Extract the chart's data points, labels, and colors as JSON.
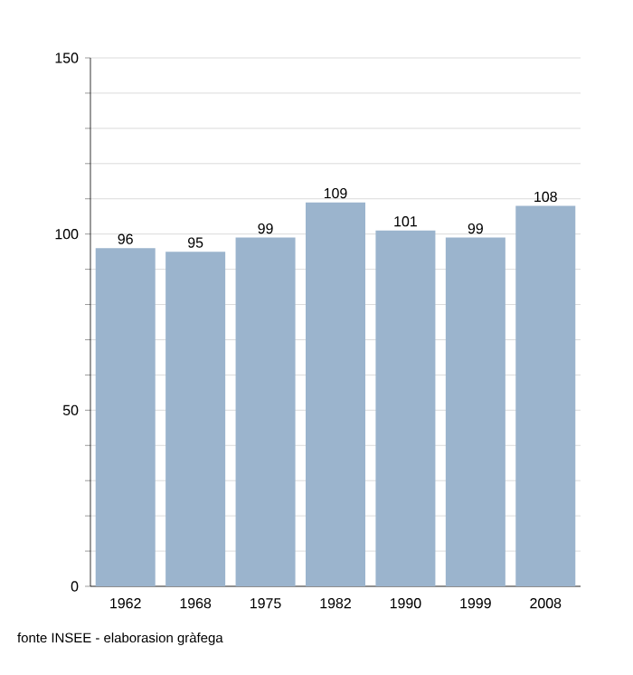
{
  "chart_data": {
    "type": "bar",
    "categories": [
      "1962",
      "1968",
      "1975",
      "1982",
      "1990",
      "1999",
      "2008"
    ],
    "values": [
      96,
      95,
      99,
      109,
      101,
      99,
      108
    ],
    "color": "#9bb4cd",
    "ylim": [
      0,
      150
    ],
    "yticks": [
      0,
      {
        "value": 10,
        "label": null
      },
      {
        "value": 20,
        "label": null
      },
      {
        "value": 30,
        "label": null
      },
      {
        "value": 40,
        "label": null
      },
      50,
      {
        "value": 60,
        "label": null
      },
      {
        "value": 70,
        "label": null
      },
      {
        "value": 80,
        "label": null
      },
      {
        "value": 90,
        "label": null
      },
      100,
      {
        "value": 110,
        "label": null
      },
      {
        "value": 120,
        "label": null
      },
      {
        "value": 130,
        "label": null
      },
      {
        "value": 140,
        "label": null
      },
      150
    ],
    "grid": "y",
    "data_labels": true,
    "annotations": [
      "fonte INSEE - elaborasion gràfega"
    ]
  }
}
